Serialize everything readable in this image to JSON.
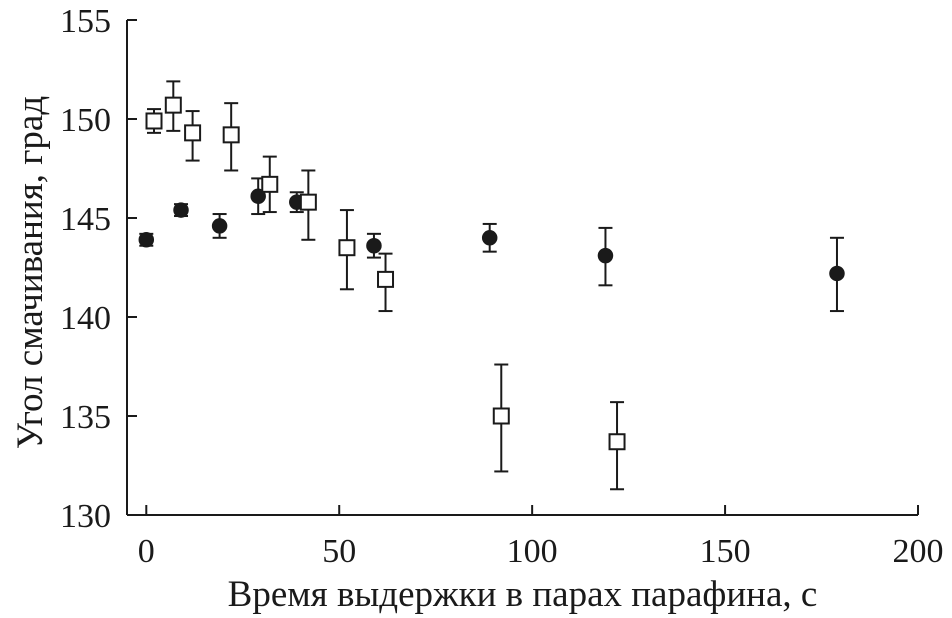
{
  "chart_data": {
    "type": "scatter",
    "title": "",
    "xlabel": "Время выдержки в парах парафина, с",
    "ylabel": "Угол смачивания, град",
    "xlim": [
      -5,
      200
    ],
    "ylim": [
      130,
      155
    ],
    "x_ticks": [
      0,
      50,
      100,
      150,
      200
    ],
    "y_ticks": [
      130,
      135,
      140,
      145,
      150,
      155
    ],
    "grid": false,
    "series": [
      {
        "marker": "filled-circle",
        "points": [
          {
            "x": 0,
            "y": 143.9,
            "err_low": 0.3,
            "err_high": 0.3
          },
          {
            "x": 9,
            "y": 145.4,
            "err_low": 0.3,
            "err_high": 0.3
          },
          {
            "x": 19,
            "y": 144.6,
            "err_low": 0.6,
            "err_high": 0.6
          },
          {
            "x": 29,
            "y": 146.1,
            "err_low": 0.9,
            "err_high": 0.9
          },
          {
            "x": 39,
            "y": 145.8,
            "err_low": 0.5,
            "err_high": 0.5
          },
          {
            "x": 59,
            "y": 143.6,
            "err_low": 0.6,
            "err_high": 0.6
          },
          {
            "x": 89,
            "y": 144.0,
            "err_low": 0.7,
            "err_high": 0.7
          },
          {
            "x": 119,
            "y": 143.1,
            "err_low": 1.5,
            "err_high": 1.4
          },
          {
            "x": 179,
            "y": 142.2,
            "err_low": 1.9,
            "err_high": 1.8
          }
        ]
      },
      {
        "marker": "open-square",
        "points": [
          {
            "x": 2,
            "y": 149.9,
            "err_low": 0.6,
            "err_high": 0.6
          },
          {
            "x": 7,
            "y": 150.7,
            "err_low": 1.3,
            "err_high": 1.2
          },
          {
            "x": 12,
            "y": 149.3,
            "err_low": 1.4,
            "err_high": 1.1
          },
          {
            "x": 22,
            "y": 149.2,
            "err_low": 1.8,
            "err_high": 1.6
          },
          {
            "x": 32,
            "y": 146.7,
            "err_low": 1.4,
            "err_high": 1.4
          },
          {
            "x": 42,
            "y": 145.8,
            "err_low": 1.9,
            "err_high": 1.6
          },
          {
            "x": 52,
            "y": 143.5,
            "err_low": 2.1,
            "err_high": 1.9
          },
          {
            "x": 62,
            "y": 141.9,
            "err_low": 1.6,
            "err_high": 1.3
          },
          {
            "x": 92,
            "y": 135.0,
            "err_low": 2.8,
            "err_high": 2.6
          },
          {
            "x": 122,
            "y": 133.7,
            "err_low": 2.4,
            "err_high": 2.0
          }
        ]
      }
    ]
  }
}
